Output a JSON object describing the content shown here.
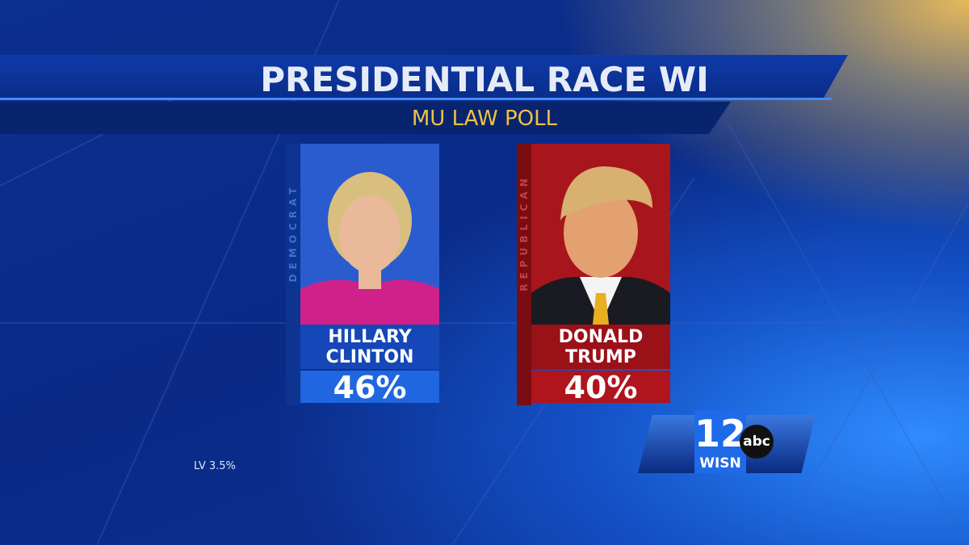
{
  "header": {
    "title": "PRESIDENTIAL RACE WI",
    "subtitle": "MU LAW POLL"
  },
  "candidates": [
    {
      "party": "DEMOCRAT",
      "name": [
        "HILLARY",
        "CLINTON"
      ],
      "percent": "46%"
    },
    {
      "party": "REPUBLICAN",
      "name": [
        "DONALD",
        "TRUMP"
      ],
      "percent": "40%"
    }
  ],
  "footnote": "LV 3.5%",
  "logo": {
    "number": "12",
    "network": "abc",
    "station": "WISN"
  }
}
